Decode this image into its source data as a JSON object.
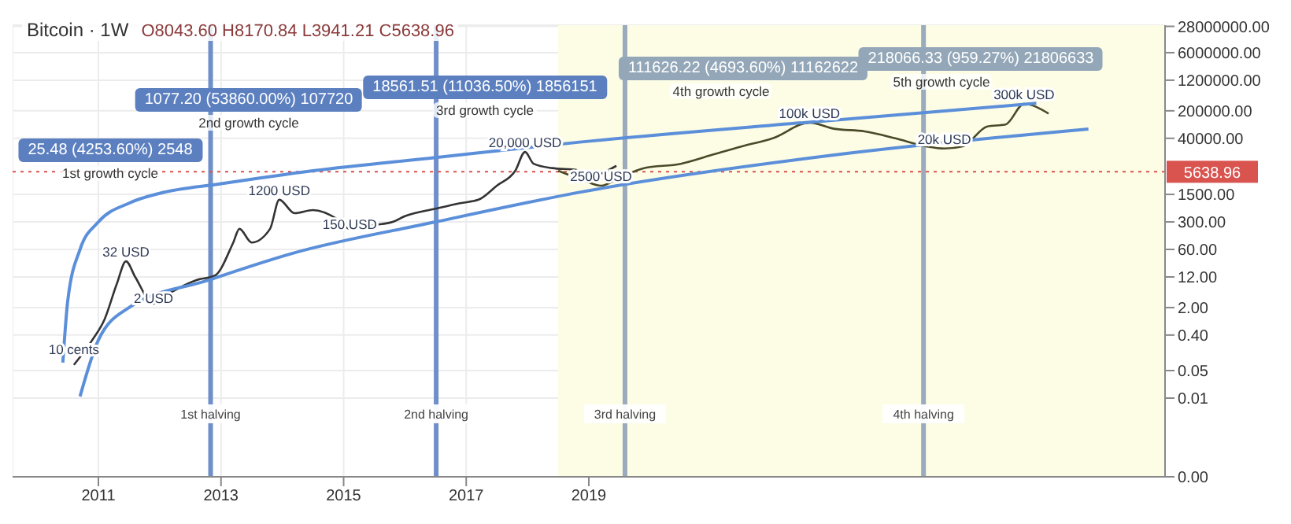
{
  "chart_data": {
    "type": "line",
    "title": "Bitcoin · 1W",
    "subtitle": "O8043.60 H8170.84 L3941.21 C5638.96",
    "log": "y",
    "grid": true,
    "xlim": [
      2009.6,
      2028.4
    ],
    "xticks": [
      2011,
      2013,
      2015,
      2017,
      2019
    ],
    "ylim": [
      0.0001,
      30000000
    ],
    "yticks": [
      {
        "value": 0.0001,
        "label": "0.00"
      },
      {
        "value": 0.01,
        "label": "0.01"
      },
      {
        "value": 0.05,
        "label": "0.05"
      },
      {
        "value": 0.4,
        "label": "0.40"
      },
      {
        "value": 2,
        "label": "2.00"
      },
      {
        "value": 12,
        "label": "12.00"
      },
      {
        "value": 60,
        "label": "60.00"
      },
      {
        "value": 300,
        "label": "300.00"
      },
      {
        "value": 1500,
        "label": "1500.00"
      },
      {
        "value": 40000,
        "label": "40000.00"
      },
      {
        "value": 200000,
        "label": "200000.00"
      },
      {
        "value": 1200000,
        "label": "1200000.00"
      },
      {
        "value": 6000000,
        "label": "6000000.00"
      },
      {
        "value": 28000000,
        "label": "28000000.00"
      }
    ],
    "series": [
      {
        "type": "line",
        "color": "#333333",
        "x": [
          2010.6,
          2010.9,
          2011.1,
          2011.3,
          2011.45,
          2011.6,
          2011.9,
          2012.2,
          2012.6,
          2012.9,
          2013.2,
          2013.3,
          2013.5,
          2013.8,
          2013.95,
          2014.2,
          2014.5,
          2014.9,
          2015.1,
          2015.5,
          2015.8,
          2016.0,
          2016.5,
          2016.9,
          2017.2,
          2017.5,
          2017.8,
          2017.96,
          2018.1,
          2018.4,
          2018.8,
          2018.95,
          2019.2,
          2019.45
        ],
        "values": [
          0.07,
          0.3,
          1,
          8,
          30,
          12,
          2.5,
          5,
          10,
          13,
          90,
          200,
          90,
          200,
          1100,
          500,
          600,
          350,
          200,
          250,
          300,
          420,
          650,
          900,
          1100,
          2500,
          6000,
          18000,
          9000,
          7000,
          6300,
          3500,
          5000,
          8000
        ]
      },
      {
        "type": "line",
        "color": "#4a4a2a",
        "x": [
          2018.5,
          2018.9,
          2019.2,
          2019.5,
          2019.9,
          2020.5,
          2021.0,
          2021.5,
          2022.0,
          2022.6,
          2023.0,
          2023.5,
          2024.0,
          2024.5,
          2024.8,
          2025.1,
          2025.5,
          2025.8,
          2026.1,
          2026.5
        ],
        "values": [
          6000,
          3500,
          2500,
          4000,
          7000,
          9000,
          15000,
          25000,
          40000,
          100000,
          70000,
          60000,
          40000,
          25000,
          22000,
          25000,
          80000,
          90000,
          300000,
          170000
        ]
      },
      {
        "type": "line",
        "color": "#5b8fd9",
        "x": [
          2010.42,
          2010.5,
          2010.7,
          2011.0,
          2011.5,
          2012.0,
          2013.0,
          2014.5,
          2016.5,
          2018.85,
          2022.5,
          2026.3
        ],
        "values": [
          0.08,
          3,
          60,
          300,
          900,
          1600,
          2800,
          6000,
          13000,
          32000,
          100000,
          310000
        ]
      },
      {
        "type": "line",
        "color": "#5b8fd9",
        "x": [
          2010.7,
          2011.0,
          2011.5,
          2012.8,
          2014.15,
          2016.5,
          2018.85,
          2023.0,
          2027.15
        ],
        "values": [
          0.011,
          0.3,
          2,
          10,
          47,
          300,
          1700,
          15000,
          69000
        ]
      }
    ],
    "ref_lines": [
      {
        "axis": "x",
        "value": 2012.83,
        "label": "1st halving",
        "color": "#6f8fc9"
      },
      {
        "axis": "x",
        "value": 2016.51,
        "label": "2nd halving",
        "color": "#6f8fc9"
      },
      {
        "axis": "x",
        "value": 2019.59,
        "label": "3rd halving",
        "color": "#9aabbd"
      },
      {
        "axis": "x",
        "value": 2024.46,
        "label": "4th halving",
        "color": "#9aabbd"
      },
      {
        "axis": "y",
        "value": 5638.96,
        "label": "5638.96",
        "color": "#d9534f",
        "line_style": "dotted"
      }
    ],
    "bands": [
      {
        "axis": "x",
        "from": 2018.5,
        "to": 2028.4,
        "color": "#fdfde6"
      }
    ],
    "annotations": [
      "25.48 (4253.60%) 2548",
      "1st growth cycle",
      "1077.20 (53860.00%) 107720",
      "2nd growth cycle",
      "18561.51 (11036.50%) 1856151",
      "3rd growth cycle",
      "111626.22 (4693.60%) 11162622",
      "4th growth cycle",
      "218066.33 (959.27%) 21806633",
      "5th growth cycle",
      {
        "text": "10 cents",
        "x": 2010.6,
        "y": 0.1
      },
      {
        "text": "32 USD",
        "x": 2011.45,
        "y": 30
      },
      {
        "text": "2 USD",
        "x": 2011.9,
        "y": 2
      },
      {
        "text": "1200 USD",
        "x": 2013.95,
        "y": 1100
      },
      {
        "text": "150 USD",
        "x": 2015.1,
        "y": 150
      },
      {
        "text": "20,000 USD",
        "x": 2017.96,
        "y": 18000
      },
      {
        "text": "2500 USD",
        "x": 2019.2,
        "y": 2500
      },
      {
        "text": "100k USD",
        "x": 2022.6,
        "y": 100000
      },
      {
        "text": "20k USD",
        "x": 2024.8,
        "y": 22000
      },
      {
        "text": "300k USD",
        "x": 2026.1,
        "y": 300000
      }
    ]
  }
}
